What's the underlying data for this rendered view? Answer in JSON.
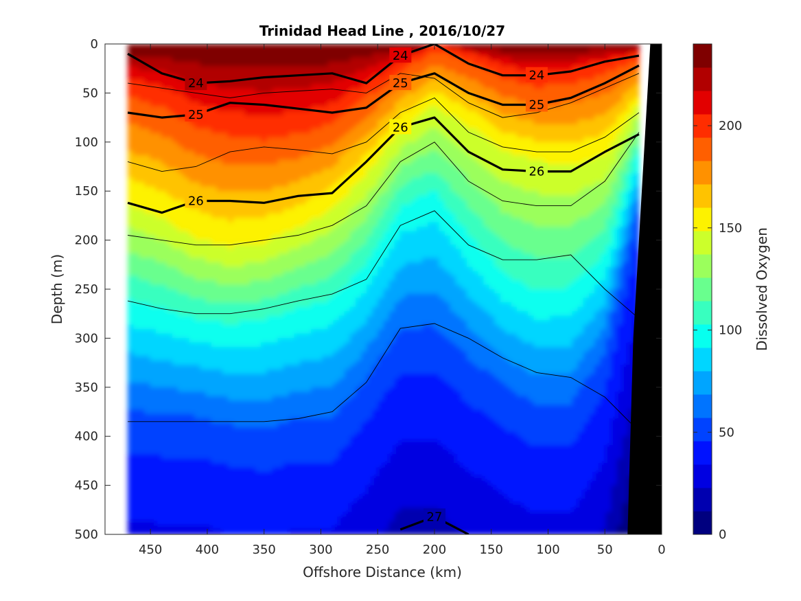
{
  "chart_data": {
    "type": "heatmap",
    "title": "Trinidad Head Line , 2016/10/27",
    "xlabel": "Offshore Distance (km)",
    "ylabel": "Depth (m)",
    "colorbar_label": "Dissolved Oxygen",
    "x_reversed": true,
    "y_reversed": true,
    "xlim": [
      0,
      490
    ],
    "ylim": [
      0,
      500
    ],
    "x_ticks": [
      450,
      400,
      350,
      300,
      250,
      200,
      150,
      100,
      50,
      0
    ],
    "y_ticks": [
      0,
      50,
      100,
      150,
      200,
      250,
      300,
      350,
      400,
      450,
      500
    ],
    "colorbar_range": [
      0,
      240
    ],
    "colorbar_ticks": [
      0,
      50,
      100,
      150,
      200
    ],
    "colormap": "jet",
    "colorbar_colors": [
      "#00007f",
      "#0000b0",
      "#0000e1",
      "#0012ff",
      "#0043ff",
      "#0074ff",
      "#00a5ff",
      "#00d6ff",
      "#07ffef",
      "#38ffbf",
      "#69ff8e",
      "#9bff5c",
      "#ccff2b",
      "#fdf200",
      "#ffc300",
      "#ff9100",
      "#ff5f00",
      "#ff2d00",
      "#e20000",
      "#b10000",
      "#7f0000"
    ],
    "grid": false,
    "section_x_km": [
      470,
      440,
      410,
      380,
      350,
      320,
      290,
      260,
      230,
      200,
      170,
      140,
      110,
      80,
      50,
      20
    ],
    "oxygen_min_depth_m": [
      {
        "level": 200,
        "depth": [
          40,
          50,
          70,
          80,
          85,
          80,
          70,
          45,
          20,
          0,
          10,
          25,
          35,
          30,
          20,
          10
        ]
      },
      {
        "level": 150,
        "depth": [
          160,
          175,
          195,
          205,
          200,
          185,
          165,
          130,
          85,
          60,
          80,
          105,
          115,
          120,
          110,
          60
        ]
      },
      {
        "level": 100,
        "depth": [
          265,
          275,
          285,
          290,
          285,
          275,
          265,
          230,
          170,
          155,
          200,
          240,
          260,
          255,
          220,
          110
        ]
      },
      {
        "level": 50,
        "depth": [
          390,
          395,
          395,
          405,
          410,
          400,
          400,
          360,
          310,
          310,
          340,
          365,
          385,
          385,
          330,
          170
        ]
      }
    ],
    "density_contours": [
      {
        "level": 24,
        "depth": [
          10,
          30,
          40,
          38,
          34,
          32,
          30,
          40,
          12,
          0,
          20,
          32,
          32,
          28,
          18,
          12
        ]
      },
      {
        "level": 25,
        "depth": [
          70,
          75,
          72,
          60,
          62,
          66,
          70,
          65,
          40,
          30,
          50,
          62,
          62,
          55,
          40,
          22
        ]
      },
      {
        "level": 26,
        "depth": [
          162,
          172,
          160,
          160,
          162,
          155,
          152,
          120,
          85,
          75,
          110,
          128,
          130,
          130,
          110,
          92
        ]
      },
      {
        "level": 27,
        "depth": [
          null,
          null,
          null,
          null,
          null,
          null,
          null,
          null,
          495,
          482,
          500,
          null,
          null,
          null,
          null,
          null
        ]
      }
    ],
    "thin_contour_depths": [
      [
        40,
        45,
        50,
        55,
        50,
        48,
        46,
        50,
        30,
        35,
        60,
        75,
        70,
        60,
        45,
        30
      ],
      [
        120,
        130,
        125,
        110,
        105,
        108,
        112,
        100,
        70,
        55,
        90,
        105,
        110,
        110,
        95,
        70
      ],
      [
        195,
        200,
        205,
        205,
        200,
        195,
        185,
        165,
        120,
        100,
        140,
        160,
        165,
        165,
        140,
        90
      ],
      [
        262,
        270,
        275,
        275,
        270,
        262,
        255,
        240,
        185,
        170,
        205,
        220,
        220,
        215,
        250,
        280
      ],
      [
        385,
        385,
        385,
        385,
        385,
        382,
        375,
        345,
        290,
        285,
        300,
        320,
        335,
        340,
        360,
        395
      ]
    ],
    "bathymetry_km_at_depth": [
      [
        0,
        0
      ],
      [
        10,
        0
      ],
      [
        15,
        100
      ],
      [
        25,
        300
      ],
      [
        30,
        500
      ],
      [
        0,
        500
      ]
    ]
  }
}
